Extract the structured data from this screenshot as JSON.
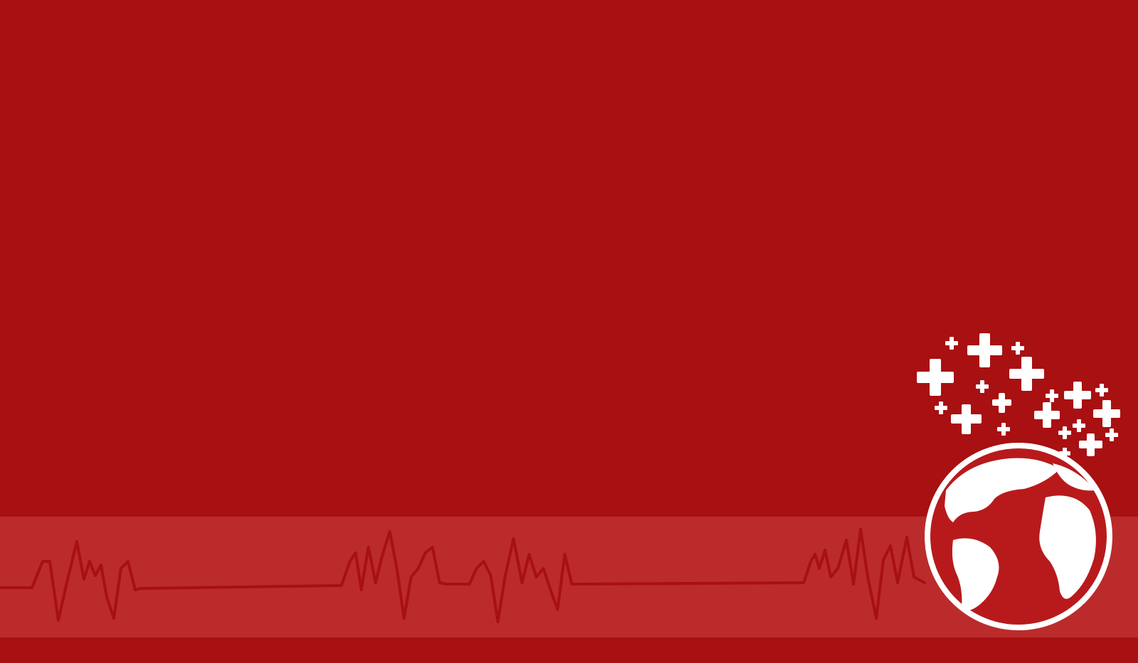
{
  "colors": {
    "background": "#a81012",
    "band": "#bb2b2c",
    "heartbeat_line": "#a81012",
    "icon_white": "#ffffff",
    "globe_red": "#b81a1c"
  },
  "icons": {
    "heartbeat": "heartbeat-line-icon",
    "globe": "globe-icon",
    "crosses": "medical-cross-icons"
  }
}
